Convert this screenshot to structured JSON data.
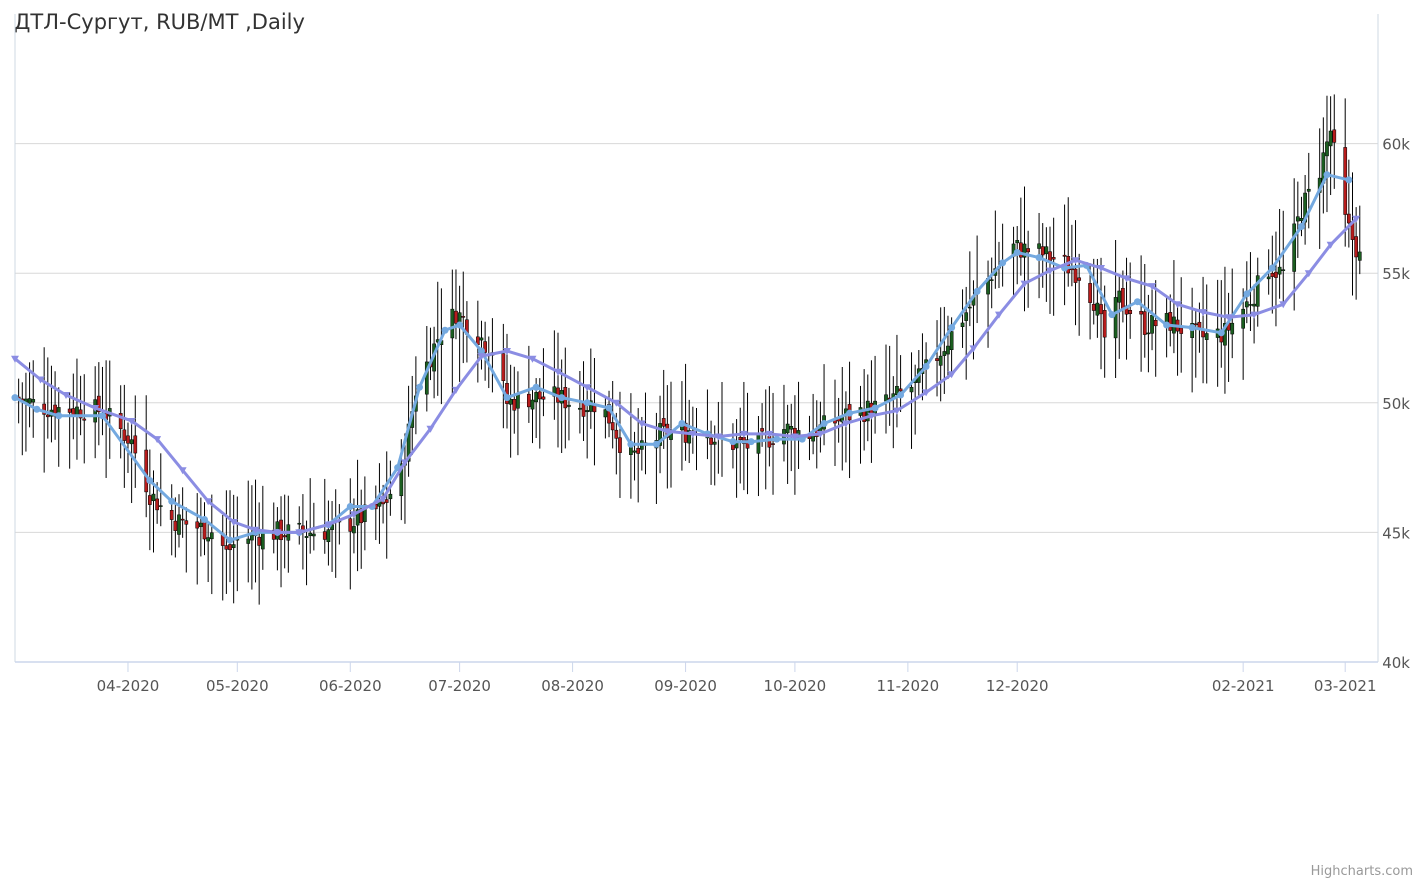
{
  "chart_data": {
    "type": "candlestick",
    "title": "ДТЛ-Сургут, RUB/MT ,Daily",
    "credits": "Highcharts.com",
    "ylim": [
      40000,
      65000
    ],
    "yticks": [
      40000,
      45000,
      50000,
      55000,
      60000
    ],
    "ytick_labels": [
      "40k",
      "45k",
      "50k",
      "55k",
      "60k"
    ],
    "xlim": [
      "2020-03-01",
      "2021-03-10"
    ],
    "xticks": [
      "2020-04-01",
      "2020-05-01",
      "2020-06-01",
      "2020-07-01",
      "2020-08-01",
      "2020-09-01",
      "2020-10-01",
      "2020-11-01",
      "2020-12-01",
      "2021-02-01",
      "2021-03-01"
    ],
    "xtick_labels": [
      "04-2020",
      "05-2020",
      "06-2020",
      "07-2020",
      "08-2020",
      "09-2020",
      "10-2020",
      "11-2020",
      "12-2020",
      "02-2021",
      "03-2021"
    ],
    "grid": true,
    "up_color": "#1b5e20",
    "down_color": "#b71c1c",
    "wick_color": "#000000",
    "close_path": [
      [
        "2020-03-01",
        50200
      ],
      [
        "2020-03-10",
        49800
      ],
      [
        "2020-03-25",
        49700
      ],
      [
        "2020-04-02",
        48500
      ],
      [
        "2020-04-07",
        46500
      ],
      [
        "2020-04-13",
        45500
      ],
      [
        "2020-04-25",
        45000
      ],
      [
        "2020-04-28",
        44200
      ],
      [
        "2020-05-01",
        44700
      ],
      [
        "2020-05-10",
        45000
      ],
      [
        "2020-05-20",
        45000
      ],
      [
        "2020-05-28",
        45100
      ],
      [
        "2020-06-03",
        45500
      ],
      [
        "2020-06-10",
        46000
      ],
      [
        "2020-06-15",
        47300
      ],
      [
        "2020-06-19",
        50500
      ],
      [
        "2020-06-25",
        52500
      ],
      [
        "2020-06-30",
        53500
      ],
      [
        "2020-07-05",
        52800
      ],
      [
        "2020-07-10",
        52000
      ],
      [
        "2020-07-14",
        50000
      ],
      [
        "2020-07-20",
        50200
      ],
      [
        "2020-07-28",
        50200
      ],
      [
        "2020-08-03",
        49900
      ],
      [
        "2020-08-08",
        50000
      ],
      [
        "2020-08-12",
        49200
      ],
      [
        "2020-08-16",
        47800
      ],
      [
        "2020-08-21",
        48200
      ],
      [
        "2020-08-25",
        48800
      ],
      [
        "2020-08-31",
        48800
      ],
      [
        "2020-09-05",
        49200
      ],
      [
        "2020-09-10",
        48500
      ],
      [
        "2020-09-20",
        48300
      ],
      [
        "2020-09-28",
        49000
      ],
      [
        "2020-10-05",
        48800
      ],
      [
        "2020-10-15",
        49500
      ],
      [
        "2020-10-25",
        49900
      ],
      [
        "2020-11-03",
        50700
      ],
      [
        "2020-11-10",
        52000
      ],
      [
        "2020-11-17",
        53500
      ],
      [
        "2020-11-24",
        55000
      ],
      [
        "2020-11-30",
        56000
      ],
      [
        "2020-12-07",
        55800
      ],
      [
        "2020-12-12",
        55500
      ],
      [
        "2020-12-18",
        55000
      ],
      [
        "2020-12-22",
        54000
      ],
      [
        "2020-12-25",
        52500
      ],
      [
        "2020-12-29",
        54000
      ],
      [
        "2021-01-05",
        53000
      ],
      [
        "2021-01-12",
        53100
      ],
      [
        "2021-01-20",
        52500
      ],
      [
        "2021-01-27",
        52700
      ],
      [
        "2021-02-03",
        54000
      ],
      [
        "2021-02-08",
        55200
      ],
      [
        "2021-02-12",
        55000
      ],
      [
        "2021-02-17",
        57500
      ],
      [
        "2021-02-21",
        58500
      ],
      [
        "2021-02-25",
        60500
      ],
      [
        "2021-03-01",
        57000
      ],
      [
        "2021-03-04",
        56000
      ],
      [
        "2021-03-06",
        55200
      ]
    ],
    "series": [
      {
        "type": "line",
        "color": "#74a9e0",
        "marker": "circle",
        "data": [
          [
            "2020-03-01",
            50200
          ],
          [
            "2020-03-07",
            49750
          ],
          [
            "2020-03-13",
            49500
          ],
          [
            "2020-03-25",
            49500
          ],
          [
            "2020-04-07",
            47000
          ],
          [
            "2020-04-13",
            46200
          ],
          [
            "2020-04-22",
            45500
          ],
          [
            "2020-04-29",
            44700
          ],
          [
            "2020-05-06",
            45000
          ],
          [
            "2020-05-12",
            45000
          ],
          [
            "2020-05-18",
            45000
          ],
          [
            "2020-05-26",
            45300
          ],
          [
            "2020-06-01",
            46000
          ],
          [
            "2020-06-07",
            46000
          ],
          [
            "2020-06-14",
            47500
          ],
          [
            "2020-06-20",
            50600
          ],
          [
            "2020-06-27",
            52800
          ],
          [
            "2020-07-01",
            53000
          ],
          [
            "2020-07-07",
            52000
          ],
          [
            "2020-07-14",
            50200
          ],
          [
            "2020-07-22",
            50600
          ],
          [
            "2020-07-29",
            50200
          ],
          [
            "2020-08-05",
            50000
          ],
          [
            "2020-08-11",
            49800
          ],
          [
            "2020-08-17",
            48400
          ],
          [
            "2020-08-24",
            48400
          ],
          [
            "2020-08-31",
            49200
          ],
          [
            "2020-09-07",
            48800
          ],
          [
            "2020-09-14",
            48500
          ],
          [
            "2020-09-19",
            48500
          ],
          [
            "2020-09-26",
            48600
          ],
          [
            "2020-10-03",
            48600
          ],
          [
            "2020-10-09",
            49200
          ],
          [
            "2020-10-16",
            49600
          ],
          [
            "2020-10-23",
            49800
          ],
          [
            "2020-10-30",
            50300
          ],
          [
            "2020-11-06",
            51400
          ],
          [
            "2020-11-13",
            52900
          ],
          [
            "2020-11-20",
            54300
          ],
          [
            "2020-11-27",
            55400
          ],
          [
            "2020-12-01",
            55800
          ],
          [
            "2020-12-07",
            55600
          ],
          [
            "2020-12-14",
            55200
          ],
          [
            "2020-12-20",
            55300
          ],
          [
            "2020-12-27",
            53400
          ],
          [
            "2021-01-03",
            53900
          ],
          [
            "2021-01-11",
            53000
          ],
          [
            "2021-01-18",
            52900
          ],
          [
            "2021-01-26",
            52700
          ],
          [
            "2021-02-02",
            54200
          ],
          [
            "2021-02-09",
            55200
          ],
          [
            "2021-02-17",
            56800
          ],
          [
            "2021-02-24",
            58800
          ],
          [
            "2021-03-02",
            58600
          ]
        ]
      },
      {
        "type": "line",
        "color": "#8b8de3",
        "marker": "triangle-down",
        "data": [
          [
            "2020-03-01",
            51700
          ],
          [
            "2020-03-08",
            50900
          ],
          [
            "2020-03-15",
            50300
          ],
          [
            "2020-03-23",
            49800
          ],
          [
            "2020-04-02",
            49300
          ],
          [
            "2020-04-09",
            48600
          ],
          [
            "2020-04-16",
            47400
          ],
          [
            "2020-04-23",
            46200
          ],
          [
            "2020-04-30",
            45400
          ],
          [
            "2020-05-06",
            45100
          ],
          [
            "2020-05-12",
            45000
          ],
          [
            "2020-05-18",
            45000
          ],
          [
            "2020-05-26",
            45300
          ],
          [
            "2020-06-02",
            45700
          ],
          [
            "2020-06-10",
            46300
          ],
          [
            "2020-06-16",
            47700
          ],
          [
            "2020-06-23",
            49000
          ],
          [
            "2020-06-30",
            50500
          ],
          [
            "2020-07-07",
            51800
          ],
          [
            "2020-07-14",
            52000
          ],
          [
            "2020-07-21",
            51700
          ],
          [
            "2020-07-28",
            51200
          ],
          [
            "2020-08-05",
            50600
          ],
          [
            "2020-08-13",
            50000
          ],
          [
            "2020-08-20",
            49200
          ],
          [
            "2020-08-27",
            48900
          ],
          [
            "2020-09-03",
            48800
          ],
          [
            "2020-09-10",
            48700
          ],
          [
            "2020-09-17",
            48800
          ],
          [
            "2020-09-24",
            48800
          ],
          [
            "2020-10-01",
            48700
          ],
          [
            "2020-10-08",
            48800
          ],
          [
            "2020-10-15",
            49200
          ],
          [
            "2020-10-22",
            49500
          ],
          [
            "2020-10-29",
            49700
          ],
          [
            "2020-11-06",
            50400
          ],
          [
            "2020-11-13",
            51100
          ],
          [
            "2020-11-19",
            52100
          ],
          [
            "2020-11-26",
            53400
          ],
          [
            "2020-12-03",
            54600
          ],
          [
            "2020-12-10",
            55100
          ],
          [
            "2020-12-17",
            55500
          ],
          [
            "2020-12-24",
            55200
          ],
          [
            "2020-12-31",
            54800
          ],
          [
            "2021-01-07",
            54500
          ],
          [
            "2021-01-14",
            53800
          ],
          [
            "2021-01-21",
            53500
          ],
          [
            "2021-01-28",
            53300
          ],
          [
            "2021-02-04",
            53400
          ],
          [
            "2021-02-12",
            53800
          ],
          [
            "2021-02-19",
            55000
          ],
          [
            "2021-02-25",
            56100
          ],
          [
            "2021-03-04",
            57100
          ]
        ]
      }
    ]
  }
}
